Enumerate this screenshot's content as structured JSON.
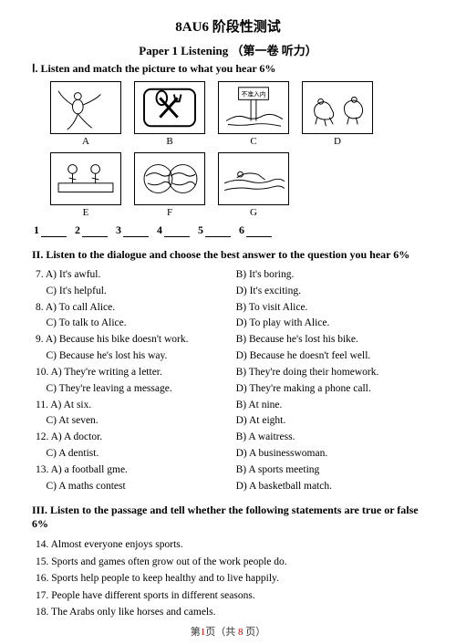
{
  "header": {
    "title": "8AU6 阶段性测试",
    "subtitle": "Paper 1   Listening  （第一卷  听力）"
  },
  "section1": {
    "heading": "Ⅰ. Listen and match the picture to what you hear 6%",
    "labels_row1": [
      "A",
      "B",
      "C",
      "D"
    ],
    "labels_row2": [
      "E",
      "F",
      "G"
    ],
    "blanks": [
      "1",
      "2",
      "3",
      "4",
      "5",
      "6"
    ],
    "sign_text": "不准入内"
  },
  "section2": {
    "heading": "II. Listen to the dialogue and choose the best answer to the question you hear 6%",
    "items": [
      {
        "n": "7.",
        "a": "A) It's awful.",
        "b": "B) It's boring.",
        "c": "C) It's helpful.",
        "d": "D) It's exciting."
      },
      {
        "n": "8.",
        "a": "A) To call Alice.",
        "b": "B) To visit Alice.",
        "c": "C) To talk to Alice.",
        "d": "D) To play with Alice."
      },
      {
        "n": "9.",
        "a": "A) Because his bike doesn't work.",
        "b": "B) Because he's lost his bike.",
        "c": "C) Because he's lost his way.",
        "d": "D) Because he doesn't feel well."
      },
      {
        "n": "10.",
        "a": "A) They're writing a letter.",
        "b": "B) They're doing their homework.",
        "c": "C) They're leaving a message.",
        "d": "D) They're making a phone call."
      },
      {
        "n": "11.",
        "a": "A) At six.",
        "b": "B) At nine.",
        "c": "C) At seven.",
        "d": "D) At eight."
      },
      {
        "n": "12.",
        "a": "A) A doctor.",
        "b": "B) A waitress.",
        "c": "C) A dentist.",
        "d": "D) A businesswoman."
      },
      {
        "n": "13.",
        "a": "A) a football gme.",
        "b": "B) A sports meeting",
        "c": "C) A maths contest",
        "d": "D) A basketball match."
      }
    ]
  },
  "section3": {
    "heading": "III. Listen to the passage and tell whether the following statements are true or false 6%",
    "stmts": [
      "14. Almost everyone enjoys sports.",
      "15. Sports and games often grow out of the work people do.",
      "16. Sports help people to keep healthy and to live happily.",
      "17. People have different sports in different seasons.",
      "18. The Arabs only like horses and camels."
    ]
  },
  "footer": {
    "cur": "1",
    "total": "8",
    "prefix": "第",
    "mid": "页（共 ",
    "suffix": " 页）"
  }
}
